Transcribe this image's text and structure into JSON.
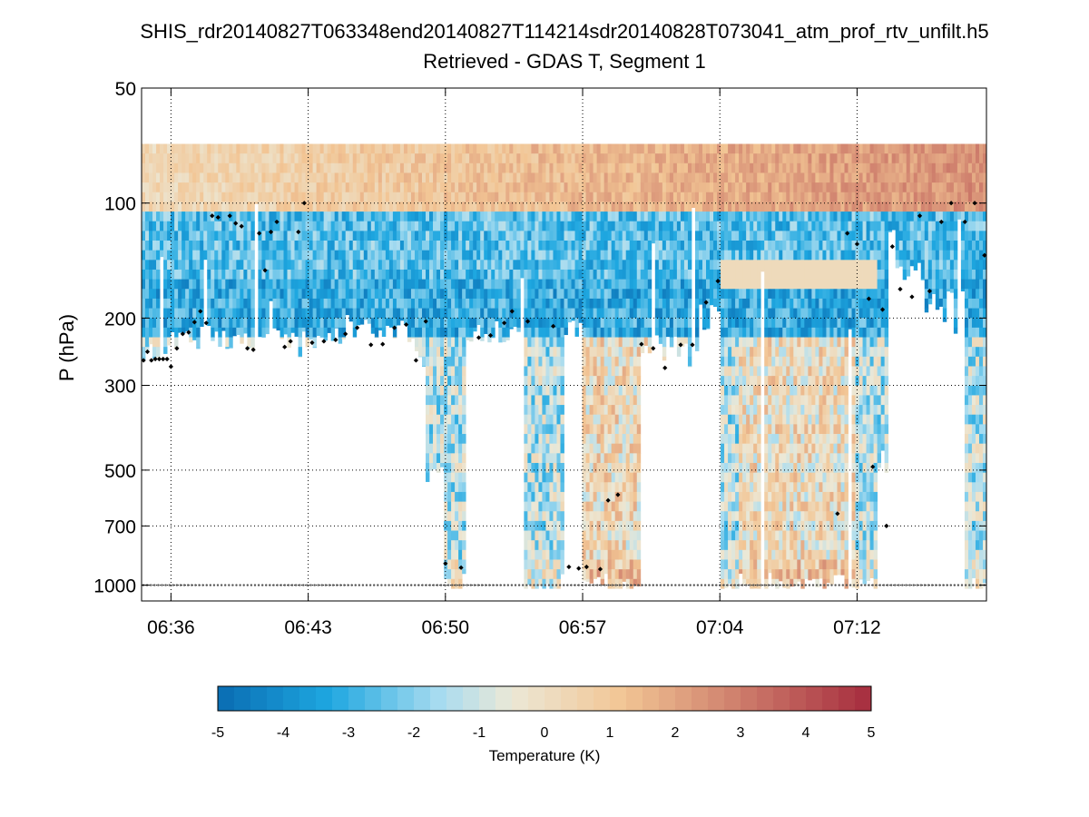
{
  "chart_data": {
    "type": "heatmap",
    "title": "SHIS_rdr20140827T063348end20140827T114214sdr20140828T073041_atm_prof_rtv_unfilt.h5",
    "subtitle": "Retrieved - GDAS T, Segment 1",
    "ylabel": "P (hPa)",
    "yscale": "log",
    "yreversed": true,
    "ylim": [
      50,
      1100
    ],
    "yticks": [
      50,
      100,
      200,
      300,
      500,
      700,
      1000
    ],
    "ytick_labels": [
      "50",
      "100",
      "200",
      "300",
      "500",
      "700",
      "1000"
    ],
    "xlabel": "",
    "xlim_minutes": [
      -1.5,
      41.6
    ],
    "xticks_minutes": [
      0,
      7,
      14,
      21,
      28,
      35
    ],
    "xtick_labels": [
      "06:36",
      "06:43",
      "06:50",
      "06:57",
      "07:04",
      "07:12"
    ],
    "grid": true,
    "colorbar": {
      "label": "Temperature (K)",
      "range": [
        -5,
        5
      ],
      "ticks": [
        -5,
        -4,
        -3,
        -2,
        -1,
        0,
        1,
        2,
        3,
        4,
        5
      ],
      "tick_labels": [
        "-5",
        "-4",
        "-3",
        "-2",
        "-1",
        "0",
        "1",
        "2",
        "3",
        "4",
        "5"
      ],
      "levels": 40,
      "colors": [
        "#0a6cb2",
        "#1ea7e0",
        "#a8dcf0",
        "#ece8d6",
        "#f2c594",
        "#a52c3e"
      ]
    },
    "field": {
      "description": "Retrieved minus GDAS temperature difference per profile (columns) and pressure level (rows)",
      "top_pressure": 70,
      "bottom_pressure": 1020,
      "columns": 232,
      "profile_bottoms_hPa": [
        {
          "t": -1.5,
          "p": 250
        },
        {
          "t": 0.0,
          "p": 225
        },
        {
          "t": 1.0,
          "p": 225
        },
        {
          "t": 2.0,
          "p": 230
        },
        {
          "t": 3.0,
          "p": 228
        },
        {
          "t": 4.0,
          "p": 232
        },
        {
          "t": 5.0,
          "p": 228
        },
        {
          "t": 6.0,
          "p": 235
        },
        {
          "t": 7.0,
          "p": 232
        },
        {
          "t": 8.0,
          "p": 225
        },
        {
          "t": 9.0,
          "p": 215
        },
        {
          "t": 10.0,
          "p": 210
        },
        {
          "t": 11.0,
          "p": 215
        },
        {
          "t": 12.5,
          "p": 250
        },
        {
          "t": 13.0,
          "p": 500
        },
        {
          "t": 14.0,
          "p": 1000
        },
        {
          "t": 15.0,
          "p": 220
        },
        {
          "t": 16.0,
          "p": 215
        },
        {
          "t": 17.0,
          "p": 215
        },
        {
          "t": 18.0,
          "p": 1000
        },
        {
          "t": 19.0,
          "p": 1000
        },
        {
          "t": 20.0,
          "p": 210
        },
        {
          "t": 21.0,
          "p": 1000
        },
        {
          "t": 22.0,
          "p": 1000
        },
        {
          "t": 23.0,
          "p": 1000
        },
        {
          "t": 24.0,
          "p": 230
        },
        {
          "t": 25.0,
          "p": 240
        },
        {
          "t": 26.0,
          "p": 250
        },
        {
          "t": 27.0,
          "p": 200
        },
        {
          "t": 28.0,
          "p": 1000
        },
        {
          "t": 35.0,
          "p": 1000
        },
        {
          "t": 36.0,
          "p": 480
        },
        {
          "t": 36.5,
          "p": 125
        },
        {
          "t": 37.0,
          "p": 150
        },
        {
          "t": 38.5,
          "p": 190
        },
        {
          "t": 39.5,
          "p": 180
        },
        {
          "t": 40.5,
          "p": 1000
        },
        {
          "t": 41.6,
          "p": 180
        }
      ]
    },
    "marker_series": {
      "name": "cloud top",
      "marker": "diamond",
      "color": "#000000",
      "points": [
        {
          "t": -1.4,
          "p": 258
        },
        {
          "t": -1.2,
          "p": 245
        },
        {
          "t": -1.0,
          "p": 258
        },
        {
          "t": -0.8,
          "p": 256
        },
        {
          "t": -0.6,
          "p": 256
        },
        {
          "t": -0.4,
          "p": 256
        },
        {
          "t": -0.2,
          "p": 256
        },
        {
          "t": 0.0,
          "p": 268
        },
        {
          "t": 0.3,
          "p": 240
        },
        {
          "t": 0.6,
          "p": 220
        },
        {
          "t": 0.9,
          "p": 218
        },
        {
          "t": 1.2,
          "p": 205
        },
        {
          "t": 1.5,
          "p": 192
        },
        {
          "t": 1.8,
          "p": 206
        },
        {
          "t": 2.1,
          "p": 108
        },
        {
          "t": 2.4,
          "p": 109
        },
        {
          "t": 3.0,
          "p": 108
        },
        {
          "t": 3.3,
          "p": 113
        },
        {
          "t": 3.6,
          "p": 115
        },
        {
          "t": 3.9,
          "p": 240
        },
        {
          "t": 4.2,
          "p": 242
        },
        {
          "t": 4.5,
          "p": 120
        },
        {
          "t": 4.8,
          "p": 150
        },
        {
          "t": 5.1,
          "p": 119
        },
        {
          "t": 5.4,
          "p": 112
        },
        {
          "t": 5.8,
          "p": 238
        },
        {
          "t": 6.1,
          "p": 230
        },
        {
          "t": 6.5,
          "p": 119
        },
        {
          "t": 6.8,
          "p": 100
        },
        {
          "t": 7.2,
          "p": 232
        },
        {
          "t": 7.8,
          "p": 230
        },
        {
          "t": 8.4,
          "p": 228
        },
        {
          "t": 8.9,
          "p": 220
        },
        {
          "t": 9.5,
          "p": 212
        },
        {
          "t": 10.2,
          "p": 235
        },
        {
          "t": 10.8,
          "p": 234
        },
        {
          "t": 11.4,
          "p": 212
        },
        {
          "t": 12.0,
          "p": 208
        },
        {
          "t": 12.5,
          "p": 258
        },
        {
          "t": 13.0,
          "p": 204
        },
        {
          "t": 14.0,
          "p": 878
        },
        {
          "t": 14.8,
          "p": 900
        },
        {
          "t": 15.7,
          "p": 225
        },
        {
          "t": 16.3,
          "p": 222
        },
        {
          "t": 17.0,
          "p": 206
        },
        {
          "t": 17.4,
          "p": 192
        },
        {
          "t": 18.2,
          "p": 204
        },
        {
          "t": 19.5,
          "p": 210
        },
        {
          "t": 20.3,
          "p": 896
        },
        {
          "t": 20.8,
          "p": 904
        },
        {
          "t": 21.2,
          "p": 896
        },
        {
          "t": 21.9,
          "p": 908
        },
        {
          "t": 22.3,
          "p": 600
        },
        {
          "t": 22.8,
          "p": 580
        },
        {
          "t": 24.0,
          "p": 234
        },
        {
          "t": 24.6,
          "p": 240
        },
        {
          "t": 25.2,
          "p": 270
        },
        {
          "t": 26.0,
          "p": 235
        },
        {
          "t": 26.6,
          "p": 235
        },
        {
          "t": 27.3,
          "p": 182
        },
        {
          "t": 27.9,
          "p": 160
        },
        {
          "t": 34.5,
          "p": 120
        },
        {
          "t": 35.0,
          "p": 128
        },
        {
          "t": 35.6,
          "p": 178
        },
        {
          "t": 36.3,
          "p": 190
        },
        {
          "t": 36.8,
          "p": 130
        },
        {
          "t": 37.2,
          "p": 168
        },
        {
          "t": 37.8,
          "p": 176
        },
        {
          "t": 38.2,
          "p": 108
        },
        {
          "t": 38.7,
          "p": 170
        },
        {
          "t": 39.3,
          "p": 112
        },
        {
          "t": 39.8,
          "p": 100
        },
        {
          "t": 40.5,
          "p": 112
        },
        {
          "t": 41.0,
          "p": 100
        },
        {
          "t": 41.5,
          "p": 137
        },
        {
          "t": 35.8,
          "p": 490
        },
        {
          "t": 34.0,
          "p": 650
        },
        {
          "t": 36.5,
          "p": 700
        }
      ]
    }
  }
}
